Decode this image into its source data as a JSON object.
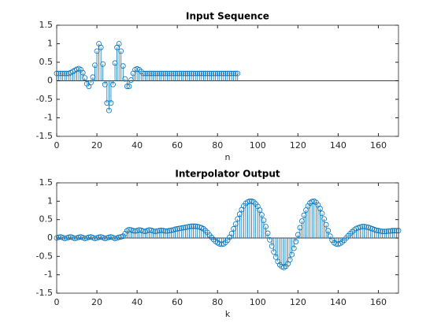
{
  "chart_data": [
    {
      "type": "stem",
      "title": "Input Sequence",
      "xlabel": "n",
      "color": "#0072bd",
      "box": true,
      "xlim": [
        0,
        170
      ],
      "ylim": [
        -1.5,
        1.5
      ],
      "xticks": [
        0,
        20,
        40,
        60,
        80,
        100,
        120,
        140,
        160
      ],
      "yticks": [
        -1.5,
        -1,
        -0.5,
        0,
        0.5,
        1,
        1.5
      ],
      "x": [
        0,
        1,
        2,
        3,
        4,
        5,
        6,
        7,
        8,
        9,
        10,
        11,
        12,
        13,
        14,
        15,
        16,
        17,
        18,
        19,
        20,
        21,
        22,
        23,
        24,
        25,
        26,
        27,
        28,
        29,
        30,
        31,
        32,
        33,
        34,
        35,
        36,
        37,
        38,
        39,
        40,
        41,
        42,
        43,
        44,
        45,
        46,
        47,
        48,
        49,
        50,
        51,
        52,
        53,
        54,
        55,
        56,
        57,
        58,
        59,
        60,
        61,
        62,
        63,
        64,
        65,
        66,
        67,
        68,
        69,
        70,
        71,
        72,
        73,
        74,
        75,
        76,
        77,
        78,
        79,
        80,
        81,
        82,
        83,
        84,
        85,
        86,
        87,
        88,
        89,
        90
      ],
      "values": [
        0.2,
        0.2,
        0.2,
        0.2,
        0.2,
        0.2,
        0.2,
        0.22,
        0.25,
        0.28,
        0.31,
        0.33,
        0.3,
        0.22,
        0.08,
        -0.08,
        -0.15,
        -0.05,
        0.1,
        0.42,
        0.8,
        1.0,
        0.9,
        0.45,
        -0.1,
        -0.6,
        -0.8,
        -0.6,
        -0.1,
        0.48,
        0.9,
        1.0,
        0.8,
        0.4,
        0.05,
        -0.15,
        -0.15,
        0.02,
        0.2,
        0.3,
        0.32,
        0.3,
        0.25,
        0.2,
        0.2,
        0.2,
        0.2,
        0.2,
        0.2,
        0.2,
        0.2,
        0.2,
        0.2,
        0.2,
        0.2,
        0.2,
        0.2,
        0.2,
        0.2,
        0.2,
        0.2,
        0.2,
        0.2,
        0.2,
        0.2,
        0.2,
        0.2,
        0.2,
        0.2,
        0.2,
        0.2,
        0.2,
        0.2,
        0.2,
        0.2,
        0.2,
        0.2,
        0.2,
        0.2,
        0.2,
        0.2,
        0.2,
        0.2,
        0.2,
        0.2,
        0.2,
        0.2,
        0.2,
        0.2,
        0.2,
        0.2
      ]
    },
    {
      "type": "stem",
      "title": "Interpolator Output",
      "xlabel": "k",
      "color": "#0072bd",
      "box": true,
      "xlim": [
        0,
        170
      ],
      "ylim": [
        -1.5,
        1.5
      ],
      "xticks": [
        0,
        20,
        40,
        60,
        80,
        100,
        120,
        140,
        160
      ],
      "yticks": [
        -1.5,
        -1,
        -0.5,
        0,
        0.5,
        1,
        1.5
      ],
      "x": [
        0,
        1,
        2,
        3,
        4,
        5,
        6,
        7,
        8,
        9,
        10,
        11,
        12,
        13,
        14,
        15,
        16,
        17,
        18,
        19,
        20,
        21,
        22,
        23,
        24,
        25,
        26,
        27,
        28,
        29,
        30,
        31,
        32,
        33,
        34,
        35,
        36,
        37,
        38,
        39,
        40,
        41,
        42,
        43,
        44,
        45,
        46,
        47,
        48,
        49,
        50,
        51,
        52,
        53,
        54,
        55,
        56,
        57,
        58,
        59,
        60,
        61,
        62,
        63,
        64,
        65,
        66,
        67,
        68,
        69,
        70,
        71,
        72,
        73,
        74,
        75,
        76,
        77,
        78,
        79,
        80,
        81,
        82,
        83,
        84,
        85,
        86,
        87,
        88,
        89,
        90,
        91,
        92,
        93,
        94,
        95,
        96,
        97,
        98,
        99,
        100,
        101,
        102,
        103,
        104,
        105,
        106,
        107,
        108,
        109,
        110,
        111,
        112,
        113,
        114,
        115,
        116,
        117,
        118,
        119,
        120,
        121,
        122,
        123,
        124,
        125,
        126,
        127,
        128,
        129,
        130,
        131,
        132,
        133,
        134,
        135,
        136,
        137,
        138,
        139,
        140,
        141,
        142,
        143,
        144,
        145,
        146,
        147,
        148,
        149,
        150,
        151,
        152,
        153,
        154,
        155,
        156,
        157,
        158,
        159,
        160,
        161,
        162,
        163,
        164,
        165,
        166,
        167,
        168,
        169,
        170
      ],
      "values": [
        0,
        0.02,
        0.03,
        0.01,
        -0.01,
        0,
        0.02,
        0.03,
        0.01,
        -0.01,
        0,
        0.02,
        0.03,
        0.01,
        -0.01,
        0,
        0.02,
        0.03,
        0.01,
        -0.01,
        0,
        0.02,
        0.03,
        0.01,
        -0.01,
        0,
        0.02,
        0.03,
        0.01,
        -0.01,
        0,
        0.02,
        0.03,
        0.05,
        0.12,
        0.2,
        0.23,
        0.22,
        0.2,
        0.19,
        0.2,
        0.22,
        0.21,
        0.19,
        0.18,
        0.2,
        0.22,
        0.21,
        0.19,
        0.18,
        0.19,
        0.2,
        0.21,
        0.2,
        0.19,
        0.19,
        0.2,
        0.21,
        0.22,
        0.24,
        0.25,
        0.26,
        0.27,
        0.28,
        0.29,
        0.3,
        0.31,
        0.32,
        0.32,
        0.32,
        0.31,
        0.3,
        0.28,
        0.25,
        0.2,
        0.15,
        0.08,
        0.02,
        -0.04,
        -0.09,
        -0.13,
        -0.16,
        -0.17,
        -0.16,
        -0.12,
        -0.06,
        0.02,
        0.12,
        0.25,
        0.38,
        0.52,
        0.65,
        0.77,
        0.87,
        0.94,
        0.98,
        1.0,
        1.0,
        0.98,
        0.93,
        0.86,
        0.76,
        0.63,
        0.48,
        0.31,
        0.13,
        -0.05,
        -0.22,
        -0.38,
        -0.52,
        -0.64,
        -0.73,
        -0.78,
        -0.8,
        -0.77,
        -0.7,
        -0.59,
        -0.45,
        -0.28,
        -0.1,
        0.09,
        0.28,
        0.46,
        0.62,
        0.76,
        0.87,
        0.95,
        0.99,
        1.0,
        0.97,
        0.9,
        0.8,
        0.67,
        0.52,
        0.36,
        0.2,
        0.05,
        -0.06,
        -0.13,
        -0.16,
        -0.17,
        -0.15,
        -0.11,
        -0.06,
        0.0,
        0.06,
        0.12,
        0.17,
        0.22,
        0.26,
        0.28,
        0.3,
        0.31,
        0.31,
        0.3,
        0.29,
        0.27,
        0.25,
        0.23,
        0.21,
        0.2,
        0.19,
        0.18,
        0.18,
        0.18,
        0.19,
        0.19,
        0.2,
        0.2,
        0.2,
        0.2
      ]
    }
  ]
}
